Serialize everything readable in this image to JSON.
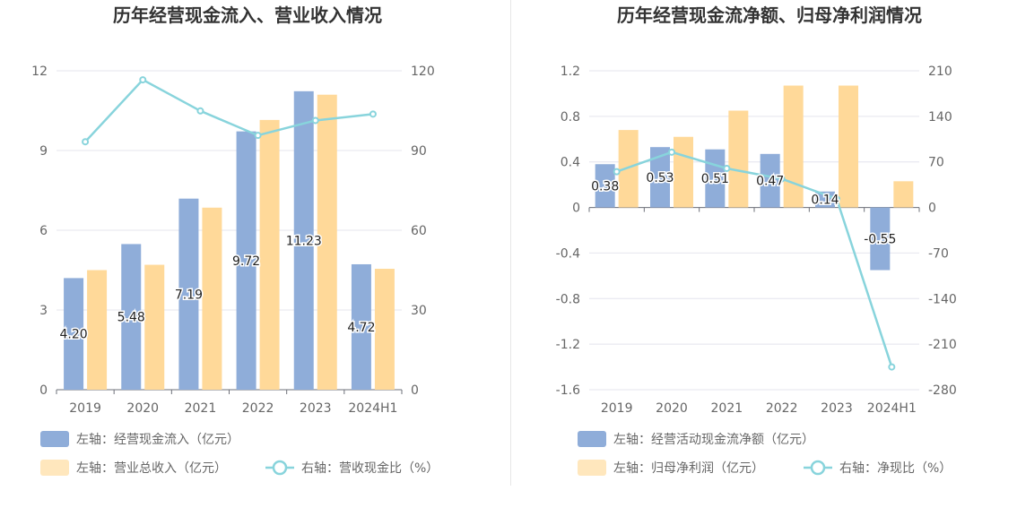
{
  "colors": {
    "bar_primary": "#8fadd9",
    "bar_secondary": "#ffd999",
    "line": "#88d4dc",
    "grid": "#e4e4ee",
    "axis_text": "#666666",
    "title": "#333333",
    "label_text": "#222222"
  },
  "chart_data": [
    {
      "type": "bar",
      "title": "历年经营现金流入、营业收入情况",
      "categories": [
        "2019",
        "2020",
        "2021",
        "2022",
        "2023",
        "2024H1"
      ],
      "left_axis": {
        "min": 0,
        "max": 12,
        "ticks": [
          "0",
          "3",
          "6",
          "9",
          "12"
        ],
        "tick_values": [
          0,
          3,
          6,
          9,
          12
        ]
      },
      "right_axis": {
        "min": 0,
        "max": 120,
        "ticks": [
          "0",
          "30",
          "60",
          "90",
          "120"
        ],
        "tick_values": [
          0,
          30,
          60,
          90,
          120
        ]
      },
      "series": [
        {
          "name": "左轴：经营现金流入（亿元）",
          "kind": "bar",
          "axis": "left",
          "color": "#8fadd9",
          "values": [
            4.2,
            5.48,
            7.19,
            9.72,
            11.23,
            4.72
          ],
          "labels": [
            "4.20",
            "5.48",
            "7.19",
            "9.72",
            "11.23",
            "4.72"
          ]
        },
        {
          "name": "左轴：营业总收入（亿元）",
          "kind": "bar",
          "axis": "left",
          "color": "#ffd999",
          "values": [
            4.5,
            4.7,
            6.85,
            10.15,
            11.1,
            4.55
          ]
        },
        {
          "name": "右轴：营收现金比（%）",
          "kind": "line",
          "axis": "right",
          "color": "#88d4dc",
          "values": [
            93.3,
            116.6,
            104.9,
            95.7,
            101.3,
            103.7
          ]
        }
      ],
      "legend": [
        {
          "label": "左轴：经营现金流入（亿元）",
          "kind": "bar",
          "color": "#8fadd9"
        },
        {
          "label": "左轴：营业总收入（亿元）",
          "kind": "bar",
          "color": "#ffe7bd"
        },
        {
          "label": "右轴：营收现金比（%）",
          "kind": "line",
          "color": "#88d4dc"
        }
      ]
    },
    {
      "type": "bar",
      "title": "历年经营现金流净额、归母净利润情况",
      "categories": [
        "2019",
        "2020",
        "2021",
        "2022",
        "2023",
        "2024H1"
      ],
      "left_axis": {
        "min": -1.6,
        "max": 1.2,
        "ticks": [
          "-1.6",
          "-1.2",
          "-0.8",
          "-0.4",
          "0",
          "0.4",
          "0.8",
          "1.2"
        ],
        "tick_values": [
          -1.6,
          -1.2,
          -0.8,
          -0.4,
          0,
          0.4,
          0.8,
          1.2
        ]
      },
      "right_axis": {
        "min": -280,
        "max": 210,
        "ticks": [
          "-280",
          "-210",
          "-140",
          "-70",
          "0",
          "70",
          "140",
          "210"
        ],
        "tick_values": [
          -280,
          -210,
          -140,
          -70,
          0,
          70,
          140,
          210
        ]
      },
      "series": [
        {
          "name": "左轴：经营活动现金流净额（亿元）",
          "kind": "bar",
          "axis": "left",
          "color": "#8fadd9",
          "values": [
            0.38,
            0.53,
            0.51,
            0.47,
            0.14,
            -0.55
          ],
          "labels": [
            "0.38",
            "0.53",
            "0.51",
            "0.47",
            "0.14",
            "-0.55"
          ]
        },
        {
          "name": "左轴：归母净利润（亿元）",
          "kind": "bar",
          "axis": "left",
          "color": "#ffd999",
          "values": [
            0.68,
            0.62,
            0.85,
            1.07,
            1.07,
            0.23
          ]
        },
        {
          "name": "右轴：净现比（%）",
          "kind": "line",
          "axis": "right",
          "color": "#88d4dc",
          "values": [
            55,
            85,
            60,
            44,
            13,
            -245
          ]
        }
      ],
      "legend": [
        {
          "label": "左轴：经营活动现金流净额（亿元）",
          "kind": "bar",
          "color": "#8fadd9"
        },
        {
          "label": "左轴：归母净利润（亿元）",
          "kind": "bar",
          "color": "#ffe7bd"
        },
        {
          "label": "右轴：净现比（%）",
          "kind": "line",
          "color": "#88d4dc"
        }
      ]
    }
  ]
}
